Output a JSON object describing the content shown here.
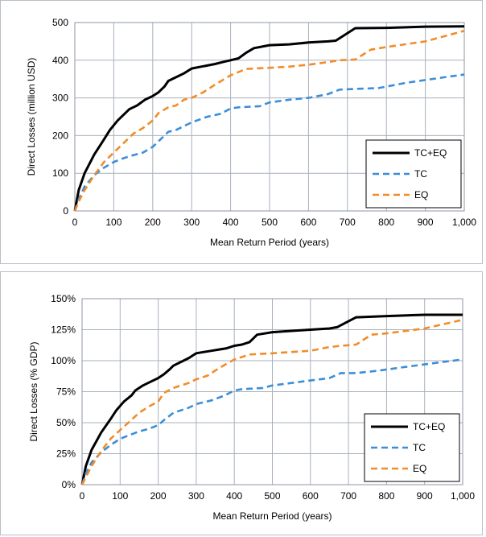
{
  "chart_data": [
    {
      "type": "line",
      "title": "",
      "xlabel": "Mean Return Period (years)",
      "ylabel": "Direct Losses (million USD)",
      "xlim": [
        0,
        1000
      ],
      "ylim": [
        0,
        500
      ],
      "x_ticks": [
        "0",
        "100",
        "200",
        "300",
        "400",
        "500",
        "600",
        "700",
        "800",
        "900",
        "1,000"
      ],
      "y_ticks": [
        "0",
        "100",
        "200",
        "300",
        "400",
        "500"
      ],
      "grid": true,
      "legend_position": "bottom-right",
      "series": [
        {
          "name": "TC+EQ",
          "color": "#000000",
          "style": "solid",
          "x": [
            0,
            10,
            25,
            50,
            75,
            90,
            110,
            130,
            140,
            150,
            160,
            180,
            200,
            215,
            230,
            240,
            260,
            280,
            300,
            320,
            340,
            360,
            380,
            400,
            420,
            440,
            460,
            500,
            550,
            600,
            650,
            670,
            720,
            800,
            900,
            1000
          ],
          "y": [
            0,
            55,
            100,
            150,
            190,
            215,
            240,
            260,
            270,
            275,
            280,
            295,
            305,
            315,
            330,
            345,
            355,
            365,
            378,
            382,
            386,
            390,
            395,
            400,
            405,
            420,
            432,
            440,
            442,
            447,
            450,
            452,
            485,
            486,
            489,
            490
          ]
        },
        {
          "name": "TC",
          "color": "#3d8ed8",
          "style": "dashed",
          "x": [
            0,
            10,
            25,
            50,
            75,
            100,
            125,
            150,
            175,
            200,
            215,
            240,
            260,
            280,
            300,
            340,
            375,
            400,
            420,
            475,
            500,
            550,
            600,
            650,
            680,
            720,
            780,
            850,
            950,
            1000
          ],
          "y": [
            0,
            30,
            65,
            95,
            115,
            130,
            140,
            148,
            155,
            170,
            185,
            210,
            215,
            225,
            235,
            250,
            258,
            272,
            275,
            278,
            288,
            295,
            300,
            310,
            322,
            324,
            326,
            340,
            355,
            362
          ]
        },
        {
          "name": "EQ",
          "color": "#f28c28",
          "style": "dashed",
          "x": [
            0,
            10,
            25,
            50,
            75,
            100,
            125,
            150,
            175,
            200,
            215,
            240,
            260,
            280,
            300,
            330,
            360,
            400,
            440,
            500,
            550,
            600,
            650,
            680,
            720,
            760,
            800,
            900,
            1000
          ],
          "y": [
            0,
            25,
            55,
            95,
            130,
            155,
            180,
            205,
            220,
            240,
            260,
            275,
            280,
            295,
            300,
            315,
            335,
            360,
            377,
            380,
            383,
            388,
            395,
            400,
            402,
            428,
            435,
            450,
            478
          ]
        }
      ]
    },
    {
      "type": "line",
      "title": "",
      "xlabel": "Mean Return Period (years)",
      "ylabel": "Direct Losses (% GDP)",
      "xlim": [
        0,
        1000
      ],
      "ylim": [
        0,
        150
      ],
      "x_ticks": [
        "0",
        "100",
        "200",
        "300",
        "400",
        "500",
        "600",
        "700",
        "800",
        "900",
        "1,000"
      ],
      "y_ticks": [
        "0%",
        "25%",
        "50%",
        "75%",
        "100%",
        "125%",
        "150%"
      ],
      "grid": true,
      "legend_position": "bottom-right",
      "series": [
        {
          "name": "TC+EQ",
          "color": "#000000",
          "style": "solid",
          "x": [
            0,
            10,
            25,
            50,
            75,
            90,
            110,
            130,
            140,
            150,
            160,
            180,
            200,
            215,
            230,
            240,
            260,
            280,
            300,
            320,
            340,
            360,
            380,
            400,
            420,
            440,
            460,
            500,
            550,
            600,
            650,
            670,
            720,
            800,
            900,
            1000
          ],
          "y": [
            0,
            15,
            28,
            42,
            53,
            60,
            67,
            72,
            76,
            78,
            80,
            83,
            86,
            89,
            93,
            96,
            99,
            102,
            106,
            107,
            108,
            109,
            110,
            112,
            113,
            115,
            121,
            123,
            124,
            125,
            126,
            127,
            135,
            136,
            137,
            137
          ]
        },
        {
          "name": "TC",
          "color": "#3d8ed8",
          "style": "dashed",
          "x": [
            0,
            10,
            25,
            50,
            75,
            100,
            125,
            150,
            175,
            200,
            215,
            240,
            260,
            280,
            300,
            340,
            375,
            400,
            420,
            475,
            500,
            550,
            600,
            650,
            680,
            720,
            780,
            850,
            950,
            1000
          ],
          "y": [
            0,
            9,
            18,
            26,
            32,
            37,
            40,
            43,
            45,
            48,
            52,
            58,
            60,
            62,
            65,
            68,
            72,
            76,
            77,
            78,
            80,
            82,
            84,
            86,
            90,
            90,
            92,
            95,
            99,
            101
          ]
        },
        {
          "name": "EQ",
          "color": "#f28c28",
          "style": "dashed",
          "x": [
            0,
            10,
            25,
            50,
            75,
            100,
            125,
            150,
            175,
            200,
            215,
            240,
            260,
            280,
            300,
            330,
            360,
            400,
            440,
            500,
            550,
            600,
            650,
            680,
            720,
            760,
            800,
            900,
            1000
          ],
          "y": [
            0,
            6,
            15,
            27,
            37,
            44,
            51,
            58,
            63,
            67,
            74,
            78,
            80,
            82,
            85,
            88,
            94,
            101,
            105,
            106,
            107,
            108,
            111,
            112,
            113,
            121,
            122,
            126,
            133
          ]
        }
      ]
    }
  ]
}
